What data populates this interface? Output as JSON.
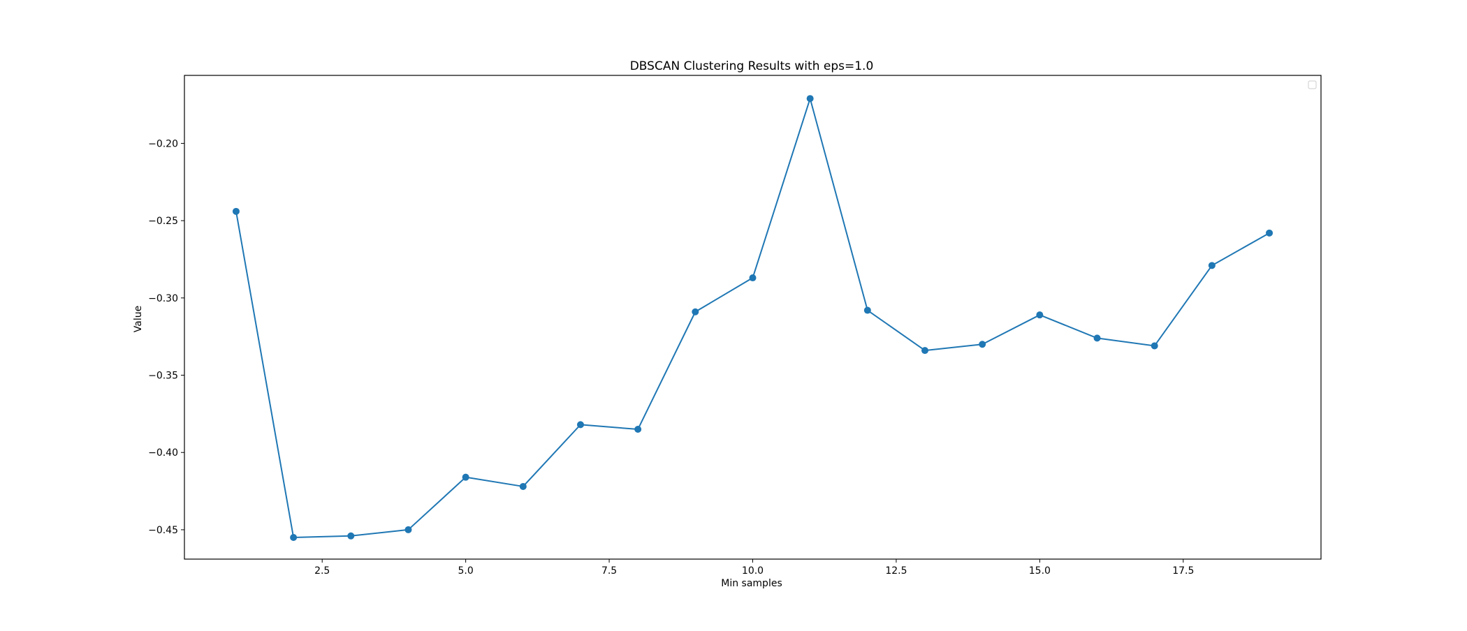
{
  "chart_data": {
    "type": "line",
    "title": "DBSCAN Clustering Results with eps=1.0",
    "xlabel": "Min samples",
    "ylabel": "Value",
    "xlim": [
      0.1,
      19.9
    ],
    "ylim": [
      -0.469,
      -0.156
    ],
    "xticks": [
      2.5,
      5.0,
      7.5,
      10.0,
      12.5,
      15.0,
      17.5
    ],
    "xtick_labels": [
      "2.5",
      "5.0",
      "7.5",
      "10.0",
      "12.5",
      "15.0",
      "17.5"
    ],
    "yticks": [
      -0.45,
      -0.4,
      -0.35,
      -0.3,
      -0.25,
      -0.2
    ],
    "ytick_labels": [
      "−0.45",
      "−0.40",
      "−0.35",
      "−0.30",
      "−0.25",
      "−0.20"
    ],
    "grid": false,
    "legend": {
      "placement": "top-right",
      "entries": []
    },
    "colors": {
      "series": "#1f77b4",
      "axes": "#000000",
      "background": "#ffffff"
    },
    "series": [
      {
        "x": [
          1,
          2,
          3,
          4,
          5,
          6,
          7,
          8,
          9,
          10,
          11,
          12,
          13,
          14,
          15,
          16,
          17,
          18,
          19
        ],
        "values": [
          -0.244,
          -0.455,
          -0.454,
          -0.45,
          -0.416,
          -0.422,
          -0.382,
          -0.385,
          -0.309,
          -0.287,
          -0.171,
          -0.308,
          -0.334,
          -0.33,
          -0.311,
          -0.326,
          -0.331,
          -0.279,
          -0.258
        ]
      }
    ]
  }
}
